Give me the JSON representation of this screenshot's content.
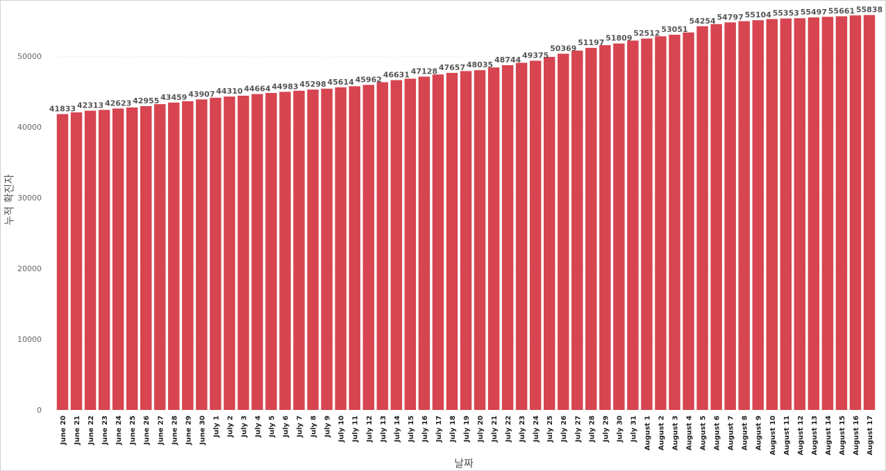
{
  "chart_data": {
    "type": "bar",
    "title": "",
    "xlabel": "날짜",
    "ylabel": "누적 확진자",
    "ylim": [
      0,
      56000
    ],
    "yticks": [
      0,
      10000,
      20000,
      30000,
      40000,
      50000
    ],
    "grid": true,
    "bar_color": "#d64550",
    "categories": [
      "June 20",
      "June 21",
      "June 22",
      "June 23",
      "June 24",
      "June 25",
      "June 26",
      "June 27",
      "June 28",
      "June 29",
      "June 30",
      "July 1",
      "July 2",
      "July 3",
      "July 4",
      "July 5",
      "July 6",
      "July 7",
      "July 8",
      "July 9",
      "July 10",
      "July 11",
      "July 12",
      "July 13",
      "July 14",
      "July 15",
      "July 16",
      "July 17",
      "July 18",
      "July 19",
      "July 20",
      "July 21",
      "July 22",
      "July 23",
      "July 24",
      "July 25",
      "July 26",
      "July 27",
      "July 28",
      "July 29",
      "July 30",
      "July 31",
      "August 1",
      "August 2",
      "August 3",
      "August 4",
      "August 5",
      "August 6",
      "August 7",
      "August 8",
      "August 9",
      "August 10",
      "August 11",
      "August 12",
      "August 13",
      "August 14",
      "August 15",
      "August 16",
      "August 17"
    ],
    "values": [
      41833,
      42071,
      42313,
      42423,
      42623,
      42767,
      42955,
      43239,
      43459,
      43653,
      43907,
      44144,
      44310,
      44430,
      44664,
      44818,
      44983,
      45133,
      45298,
      45423,
      45614,
      45766,
      45962,
      46335,
      46631,
      46840,
      47128,
      47431,
      47657,
      47917,
      48035,
      48428,
      48744,
      49085,
      49375,
      49915,
      50369,
      50811,
      51197,
      51578,
      51809,
      52227,
      52512,
      52832,
      53051,
      53373,
      54254,
      54559,
      54797,
      54967,
      55104,
      55269,
      55353,
      55383,
      55497,
      55587,
      55661,
      55786,
      55838
    ],
    "data_labels": [
      "41833",
      null,
      "42313",
      null,
      "42623",
      null,
      "42955",
      null,
      "43459",
      null,
      "43907",
      null,
      "44310",
      null,
      "44664",
      null,
      "44983",
      null,
      "45298",
      null,
      "45614",
      null,
      "45962",
      null,
      "46631",
      null,
      "47128",
      null,
      "47657",
      null,
      "48035",
      null,
      "48744",
      null,
      "49375",
      null,
      "50369",
      null,
      "51197",
      null,
      "51809",
      null,
      "52512",
      null,
      "53051",
      null,
      "54254",
      null,
      "54797",
      null,
      "55104",
      null,
      "55353",
      null,
      "55497",
      null,
      "55661",
      null,
      "55838"
    ]
  }
}
